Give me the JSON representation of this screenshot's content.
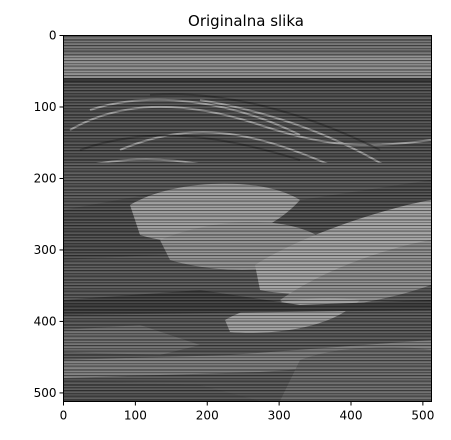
{
  "chart_data": {
    "type": "heatmap",
    "title": "Originalna slika",
    "colormap": "gray",
    "image_size": [
      512,
      512
    ],
    "xlim": [
      0,
      512
    ],
    "ylim": [
      512,
      0
    ],
    "x_ticks": [
      0,
      100,
      200,
      300,
      400,
      500
    ],
    "y_ticks": [
      0,
      100,
      200,
      300,
      400,
      500
    ],
    "grid": false,
    "legend": "none"
  }
}
